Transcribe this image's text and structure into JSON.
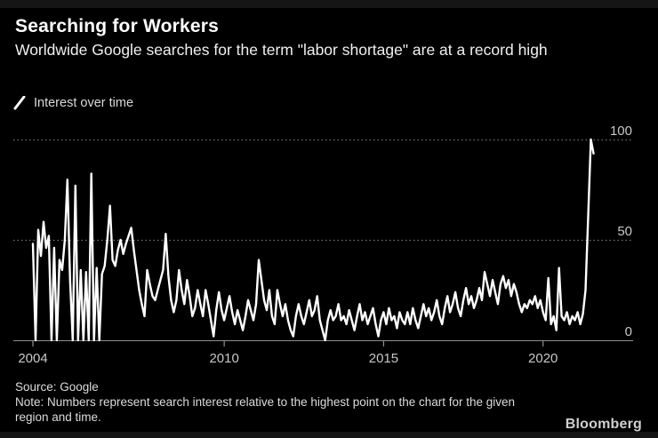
{
  "header": {
    "title": "Searching for Workers",
    "subtitle": "Worldwide Google searches for the term \"labor shortage\" are at a record high"
  },
  "legend": {
    "label": "Interest over time",
    "marker_icon": "line-slash-icon",
    "marker_color": "#ffffff"
  },
  "footer": {
    "source": "Source: Google",
    "note": "Note: Numbers represent search interest relative to the highest point on the chart for the given region and time.",
    "brand": "Bloomberg"
  },
  "colors": {
    "background": "#000000",
    "edge_strip": "#151515",
    "title": "#ffffff",
    "line": "#ffffff",
    "grid": "#6f6f6f",
    "axis": "#8f8f8f",
    "tick_label": "#c7c7c7",
    "footer_text": "#dcdcdc",
    "brand": "#cfcfcf"
  },
  "chart_data": {
    "type": "line",
    "title": "Interest over time",
    "x_unit": "month",
    "start": "2004-01",
    "end": "2021-08",
    "start_year": 2004,
    "ylim": [
      0,
      100
    ],
    "yticks": [
      0,
      50,
      100
    ],
    "xticks": [
      2004,
      2010,
      2015,
      2020
    ],
    "grid": "horizontal-dotted",
    "legend_position": "top-left",
    "ytick_side": "right",
    "series": [
      {
        "name": "Interest over time",
        "color": "#ffffff",
        "values": [
          48,
          0,
          55,
          42,
          59,
          46,
          52,
          0,
          46,
          0,
          40,
          35,
          50,
          80,
          30,
          0,
          77,
          0,
          35,
          0,
          34,
          0,
          83,
          0,
          36,
          0,
          33,
          37,
          50,
          67,
          40,
          37,
          45,
          50,
          43,
          48,
          52,
          56,
          45,
          35,
          25,
          18,
          12,
          35,
          28,
          22,
          20,
          25,
          30,
          35,
          53,
          32,
          20,
          14,
          20,
          35,
          25,
          18,
          30,
          22,
          12,
          16,
          25,
          18,
          12,
          25,
          18,
          10,
          2,
          15,
          24,
          15,
          10,
          16,
          22,
          14,
          8,
          15,
          10,
          5,
          12,
          20,
          15,
          10,
          18,
          40,
          30,
          20,
          15,
          25,
          12,
          8,
          25,
          18,
          12,
          18,
          10,
          5,
          2,
          12,
          18,
          12,
          8,
          14,
          20,
          12,
          15,
          22,
          10,
          5,
          0,
          10,
          15,
          10,
          12,
          18,
          10,
          12,
          8,
          15,
          10,
          5,
          12,
          18,
          10,
          14,
          8,
          12,
          16,
          8,
          2,
          10,
          14,
          8,
          16,
          10,
          12,
          6,
          14,
          10,
          8,
          14,
          8,
          16,
          10,
          6,
          12,
          18,
          12,
          16,
          10,
          14,
          20,
          12,
          8,
          16,
          22,
          14,
          18,
          24,
          16,
          12,
          20,
          26,
          18,
          22,
          16,
          20,
          26,
          20,
          34,
          28,
          22,
          30,
          24,
          18,
          28,
          32,
          26,
          30,
          22,
          28,
          24,
          18,
          14,
          18,
          16,
          20,
          18,
          22,
          16,
          20,
          14,
          10,
          31,
          8,
          12,
          5,
          36,
          12,
          10,
          14,
          8,
          12,
          10,
          14,
          8,
          13,
          25,
          62,
          100,
          93
        ]
      }
    ]
  }
}
